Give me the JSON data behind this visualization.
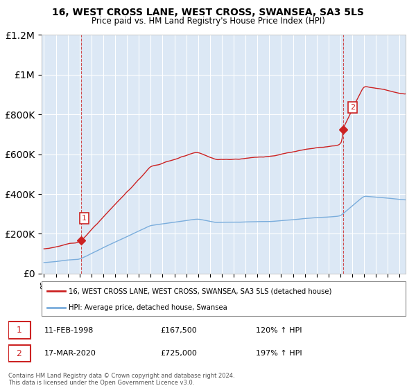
{
  "title": "16, WEST CROSS LANE, WEST CROSS, SWANSEA, SA3 5LS",
  "subtitle": "Price paid vs. HM Land Registry's House Price Index (HPI)",
  "legend_line1": "16, WEST CROSS LANE, WEST CROSS, SWANSEA, SA3 5LS (detached house)",
  "legend_line2": "HPI: Average price, detached house, Swansea",
  "annotation1_label": "1",
  "annotation1_date": "11-FEB-1998",
  "annotation1_price": "£167,500",
  "annotation1_hpi": "120% ↑ HPI",
  "annotation2_label": "2",
  "annotation2_date": "17-MAR-2020",
  "annotation2_price": "£725,000",
  "annotation2_hpi": "197% ↑ HPI",
  "footnote": "Contains HM Land Registry data © Crown copyright and database right 2024.\nThis data is licensed under the Open Government Licence v3.0.",
  "sale1_x": 1998.11,
  "sale1_y": 167500,
  "sale2_x": 2020.21,
  "sale2_y": 725000,
  "hpi_color": "#7aaddc",
  "property_color": "#cc2222",
  "marker_color": "#cc2222",
  "ylim": [
    0,
    1200000
  ],
  "xlim": [
    1994.8,
    2025.5
  ],
  "plot_bg_color": "#dce8f5",
  "background_color": "#ffffff",
  "grid_color": "#ffffff"
}
